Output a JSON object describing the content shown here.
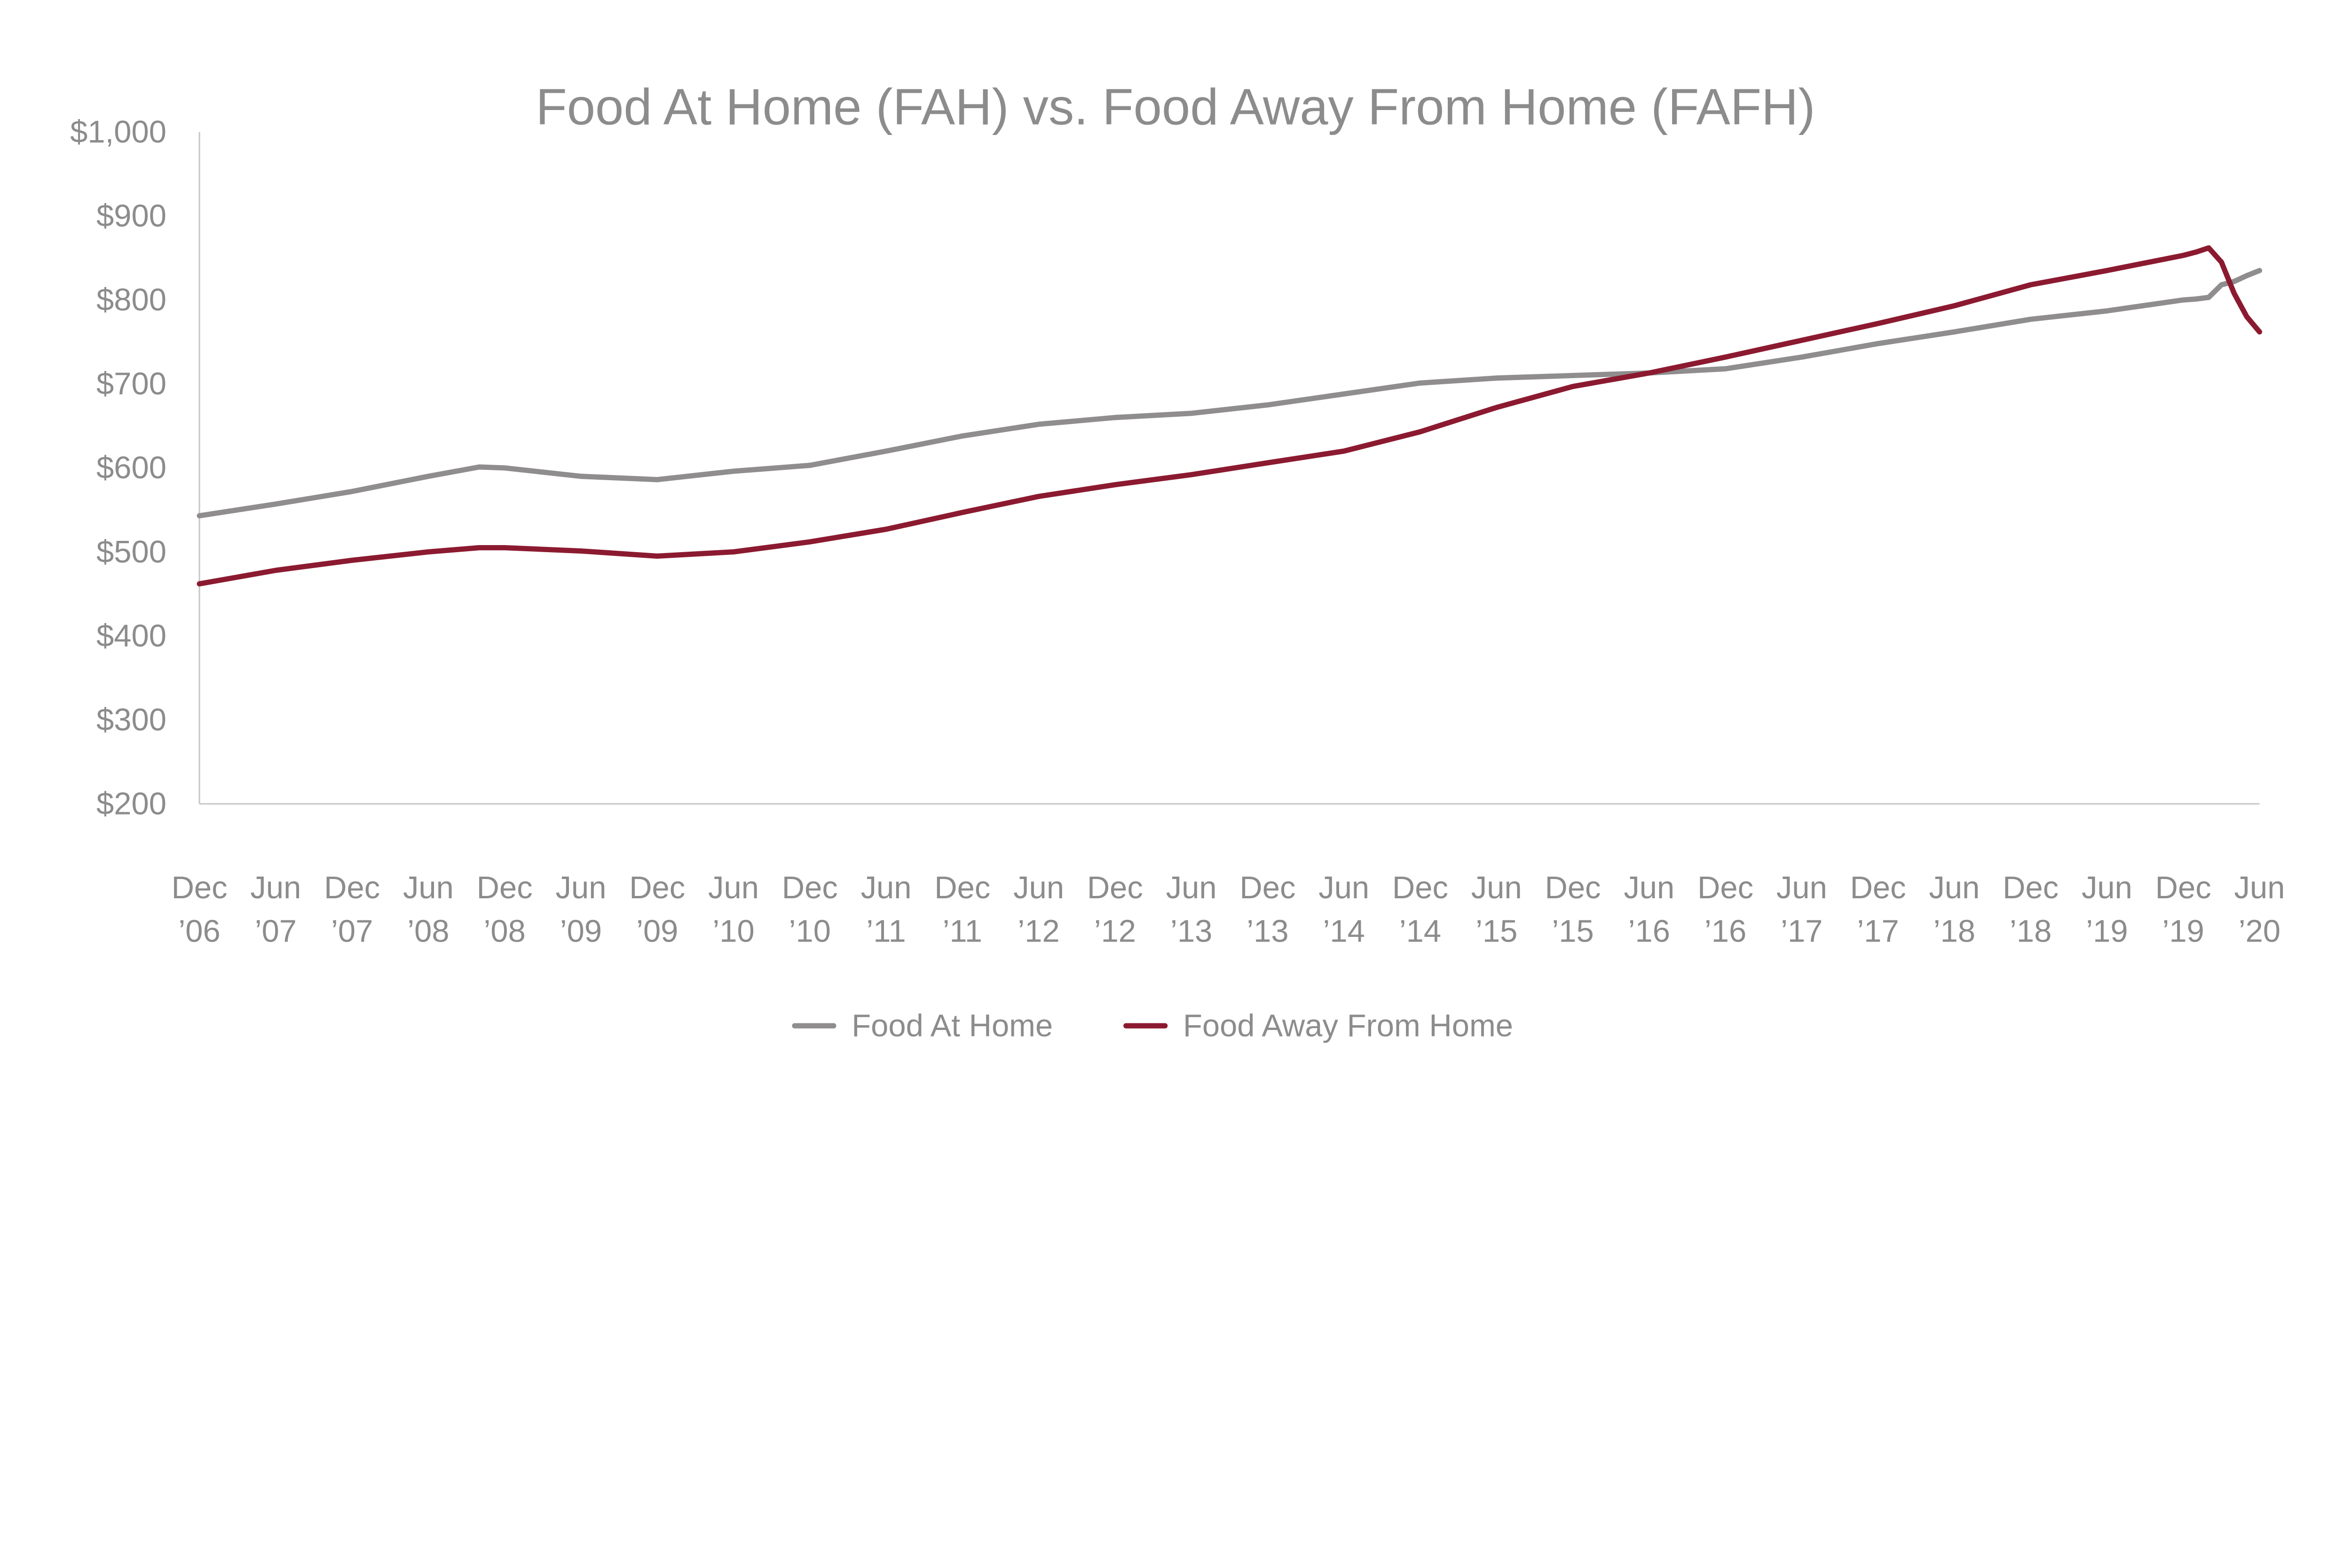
{
  "chart_data": {
    "type": "line",
    "title": "Food At Home (FAH) vs. Food Away From Home (FAFH)",
    "xlabel": "",
    "ylabel": "",
    "ylim": [
      200,
      1000
    ],
    "yticks": [
      "$1,000",
      "$900",
      "$800",
      "$700",
      "$600",
      "$500",
      "$400",
      "$300",
      "$200"
    ],
    "ytick_values": [
      1000,
      900,
      800,
      700,
      600,
      500,
      400,
      300,
      200
    ],
    "xticks": [
      [
        "Dec",
        "’06"
      ],
      [
        "Jun",
        "’07"
      ],
      [
        "Dec",
        "’07"
      ],
      [
        "Jun",
        "’08"
      ],
      [
        "Dec",
        "’08"
      ],
      [
        "Jun",
        "’09"
      ],
      [
        "Dec",
        "’09"
      ],
      [
        "Jun",
        "’10"
      ],
      [
        "Dec",
        "’10"
      ],
      [
        "Jun",
        "’11"
      ],
      [
        "Dec",
        "’11"
      ],
      [
        "Jun",
        "’12"
      ],
      [
        "Dec",
        "’12"
      ],
      [
        "Jun",
        "’13"
      ],
      [
        "Dec",
        "’13"
      ],
      [
        "Jun",
        "’14"
      ],
      [
        "Dec",
        "’14"
      ],
      [
        "Jun",
        "’15"
      ],
      [
        "Dec",
        "’15"
      ],
      [
        "Jun",
        "’16"
      ],
      [
        "Dec",
        "’16"
      ],
      [
        "Jun",
        "’17"
      ],
      [
        "Dec",
        "’17"
      ],
      [
        "Jun",
        "’18"
      ],
      [
        "Dec",
        "’18"
      ],
      [
        "Jun",
        "’19"
      ],
      [
        "Dec",
        "’19"
      ],
      [
        "Jun",
        "’20"
      ]
    ],
    "xtick_dates": [
      "2006-12",
      "2007-06",
      "2007-12",
      "2008-06",
      "2008-12",
      "2009-06",
      "2009-12",
      "2010-06",
      "2010-12",
      "2011-06",
      "2011-12",
      "2012-06",
      "2012-12",
      "2013-06",
      "2013-12",
      "2014-06",
      "2014-12",
      "2015-06",
      "2015-12",
      "2016-06",
      "2016-12",
      "2017-06",
      "2017-12",
      "2018-06",
      "2018-12",
      "2019-06",
      "2019-12",
      "2020-06"
    ],
    "grid": false,
    "legend": "bottom",
    "x": [
      "2006-12",
      "2007-06",
      "2007-12",
      "2008-06",
      "2008-10",
      "2008-12",
      "2009-06",
      "2009-12",
      "2010-06",
      "2010-12",
      "2011-06",
      "2011-12",
      "2012-06",
      "2012-12",
      "2013-06",
      "2013-12",
      "2014-06",
      "2014-12",
      "2015-06",
      "2015-12",
      "2016-06",
      "2016-12",
      "2017-06",
      "2017-12",
      "2018-06",
      "2018-12",
      "2019-06",
      "2019-12",
      "2020-01",
      "2020-02",
      "2020-03",
      "2020-04",
      "2020-05",
      "2020-06"
    ],
    "series": [
      {
        "name": "Food At Home",
        "color": "#8f8d8e",
        "values": [
          543,
          557,
          572,
          590,
          601,
          600,
          590,
          586,
          596,
          603,
          620,
          638,
          652,
          660,
          665,
          675,
          688,
          701,
          707,
          710,
          713,
          718,
          732,
          748,
          762,
          777,
          787,
          800,
          801,
          803,
          818,
          822,
          829,
          835
        ]
      },
      {
        "name": "Food Away From Home",
        "color": "#8b1a30",
        "values": [
          462,
          478,
          490,
          500,
          505,
          505,
          501,
          495,
          500,
          512,
          527,
          547,
          566,
          580,
          592,
          606,
          620,
          643,
          672,
          697,
          713,
          732,
          752,
          772,
          793,
          818,
          835,
          853,
          857,
          862,
          845,
          808,
          780,
          762
        ]
      }
    ]
  }
}
